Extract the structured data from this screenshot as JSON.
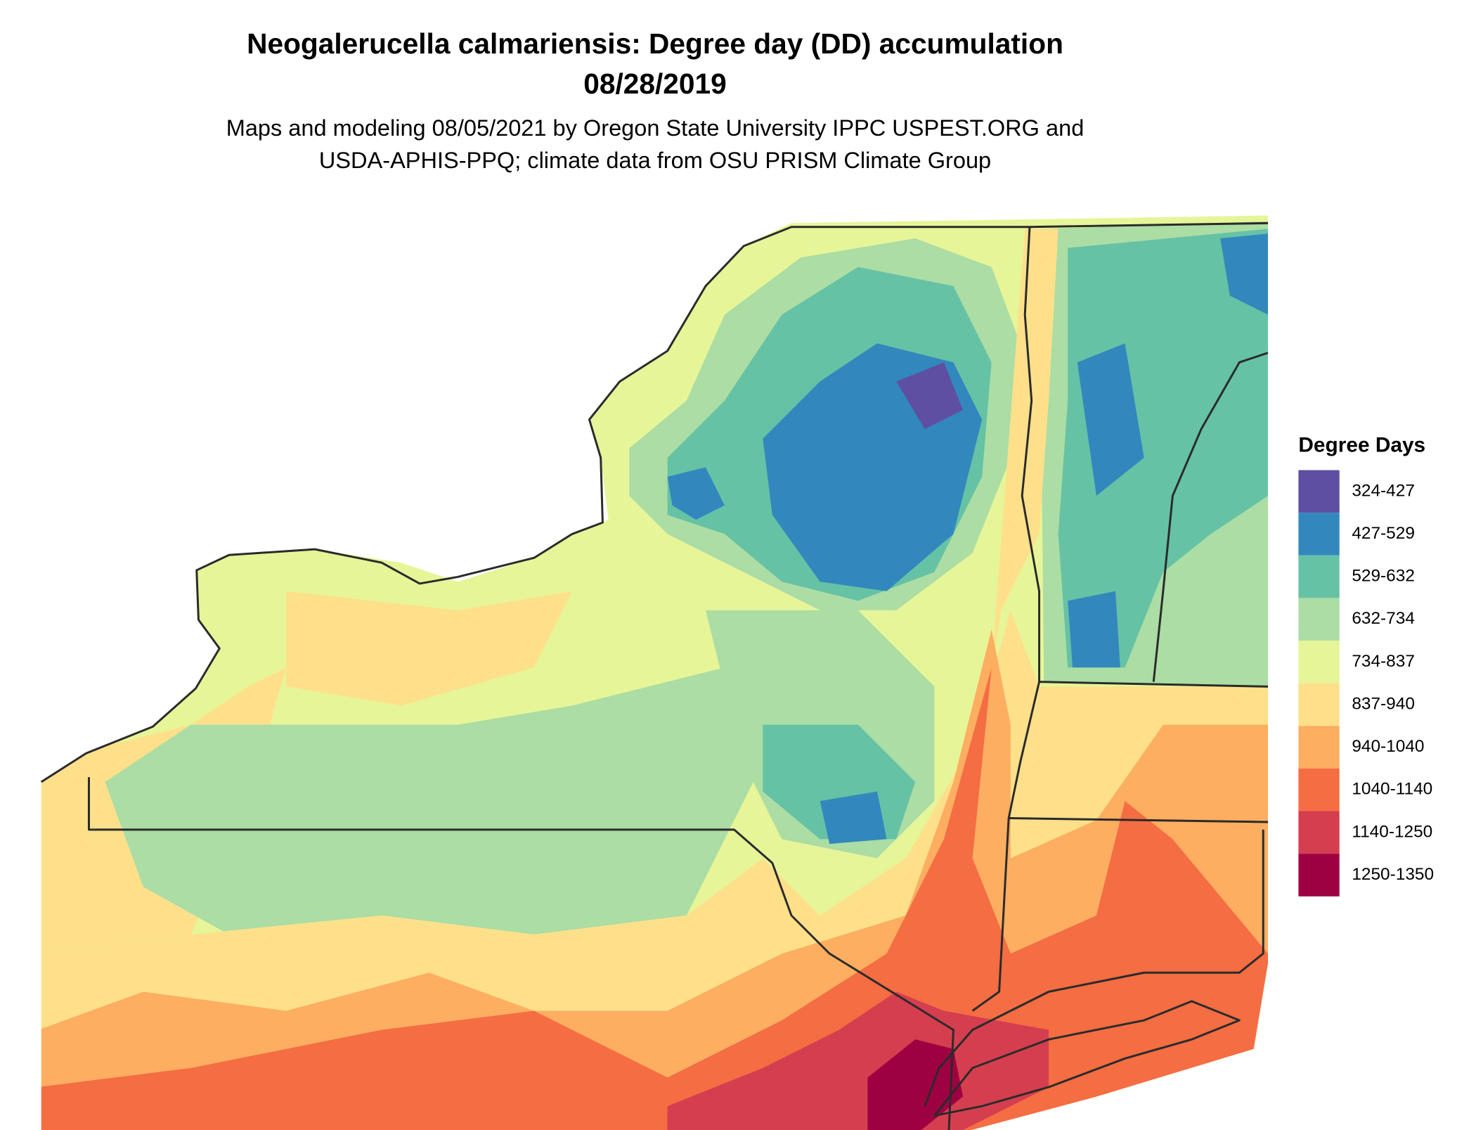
{
  "title": [
    "Neogalerucella calmariensis: Degree day (DD) accumulation",
    "08/28/2019"
  ],
  "subtitle": [
    "Maps and modeling 08/05/2021 by Oregon State University IPPC USPEST.ORG and",
    "USDA-APHIS-PPQ; climate data from OSU PRISM Climate Group"
  ],
  "legend": {
    "title": "Degree Days",
    "items": [
      {
        "label": "324-427",
        "color": "#5e4fa2"
      },
      {
        "label": "427-529",
        "color": "#3288bd"
      },
      {
        "label": "529-632",
        "color": "#66c2a5"
      },
      {
        "label": "632-734",
        "color": "#abdda4"
      },
      {
        "label": "734-837",
        "color": "#e6f598"
      },
      {
        "label": "837-940",
        "color": "#fee08b"
      },
      {
        "label": "940-1040",
        "color": "#fdae61"
      },
      {
        "label": "1040-1140",
        "color": "#f46d43"
      },
      {
        "label": "1140-1250",
        "color": "#d53e4f"
      },
      {
        "label": "1250-1350",
        "color": "#9e0142"
      }
    ]
  }
}
